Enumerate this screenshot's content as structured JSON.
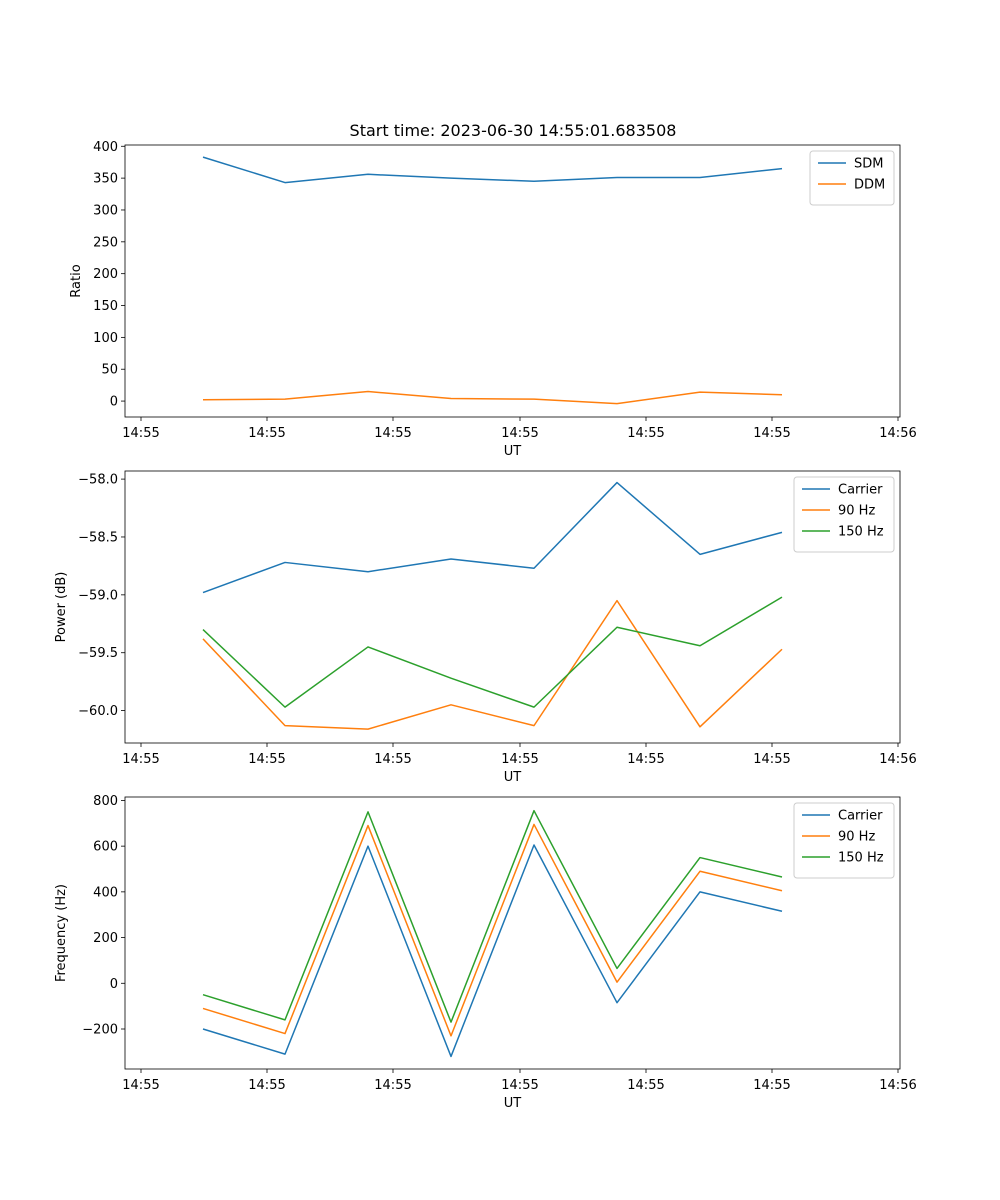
{
  "figure": {
    "title": "Start time: 2023-06-30 14:55:01.683508"
  },
  "chart_data": [
    {
      "type": "line",
      "ylabel": "Ratio",
      "xlabel": "UT",
      "x_tick_labels": [
        "14:55",
        "14:55",
        "14:55",
        "14:55",
        "14:55",
        "14:55",
        "14:56"
      ],
      "y_ticks": [
        0,
        50,
        100,
        150,
        200,
        250,
        300,
        350,
        400
      ],
      "ylim": [
        -25,
        402
      ],
      "legend_position": "top-right",
      "series": [
        {
          "name": "SDM",
          "color": "#1f77b4",
          "values": [
            383,
            343,
            356,
            350,
            345,
            351,
            351,
            365
          ]
        },
        {
          "name": "DDM",
          "color": "#ff7f0e",
          "values": [
            2,
            3,
            15,
            4,
            3,
            -4,
            14,
            10
          ]
        }
      ]
    },
    {
      "type": "line",
      "ylabel": "Power (dB)",
      "xlabel": "UT",
      "x_tick_labels": [
        "14:55",
        "14:55",
        "14:55",
        "14:55",
        "14:55",
        "14:55",
        "14:56"
      ],
      "y_ticks": [
        -60.0,
        -59.5,
        -59.0,
        -58.5,
        -58.0
      ],
      "y_tick_labels": [
        "−60.0",
        "−59.5",
        "−59.0",
        "−58.5",
        "−58.0"
      ],
      "ylim": [
        -60.28,
        -57.93
      ],
      "legend_position": "top-right",
      "series": [
        {
          "name": "Carrier",
          "color": "#1f77b4",
          "values": [
            -58.98,
            -58.72,
            -58.8,
            -58.69,
            -58.77,
            -58.03,
            -58.65,
            -58.46
          ]
        },
        {
          "name": "90 Hz",
          "color": "#ff7f0e",
          "values": [
            -59.38,
            -60.13,
            -60.16,
            -59.95,
            -60.13,
            -59.05,
            -60.14,
            -59.47
          ]
        },
        {
          "name": "150 Hz",
          "color": "#2ca02c",
          "values": [
            -59.3,
            -59.97,
            -59.45,
            -59.72,
            -59.97,
            -59.28,
            -59.44,
            -59.02
          ]
        }
      ]
    },
    {
      "type": "line",
      "ylabel": "Frequency (Hz)",
      "xlabel": "UT",
      "x_tick_labels": [
        "14:55",
        "14:55",
        "14:55",
        "14:55",
        "14:55",
        "14:55",
        "14:56"
      ],
      "y_ticks": [
        -200,
        0,
        200,
        400,
        600,
        800
      ],
      "y_tick_labels": [
        "−200",
        "0",
        "200",
        "400",
        "600",
        "800"
      ],
      "ylim": [
        -375,
        815
      ],
      "legend_position": "top-right",
      "series": [
        {
          "name": "Carrier",
          "color": "#1f77b4",
          "values": [
            -200,
            -310,
            600,
            -320,
            605,
            -85,
            400,
            315
          ]
        },
        {
          "name": "90 Hz",
          "color": "#ff7f0e",
          "values": [
            -110,
            -220,
            690,
            -230,
            695,
            5,
            490,
            405
          ]
        },
        {
          "name": "150 Hz",
          "color": "#2ca02c",
          "values": [
            -50,
            -160,
            750,
            -170,
            755,
            65,
            550,
            465
          ]
        }
      ]
    }
  ]
}
